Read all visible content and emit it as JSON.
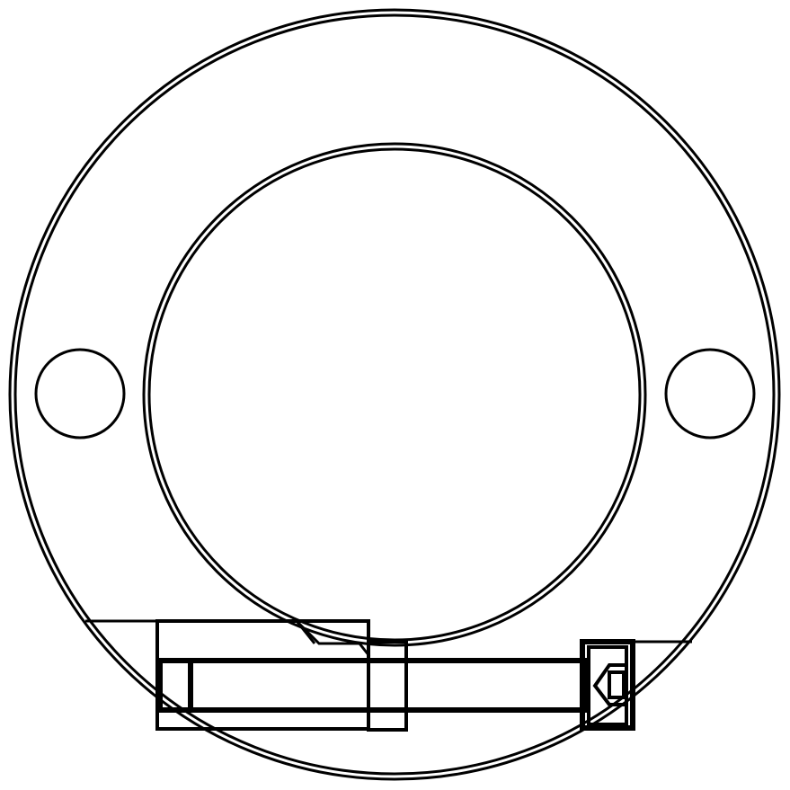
{
  "figure": {
    "kind": "mechanical-drawing",
    "view": "front",
    "background": "#ffffff",
    "line_color": "#000000",
    "components": [
      "outer-flange-ring",
      "inner-bore-circle",
      "left-mounting-hole",
      "right-mounting-hole",
      "clamp-bolt-assembly"
    ]
  }
}
